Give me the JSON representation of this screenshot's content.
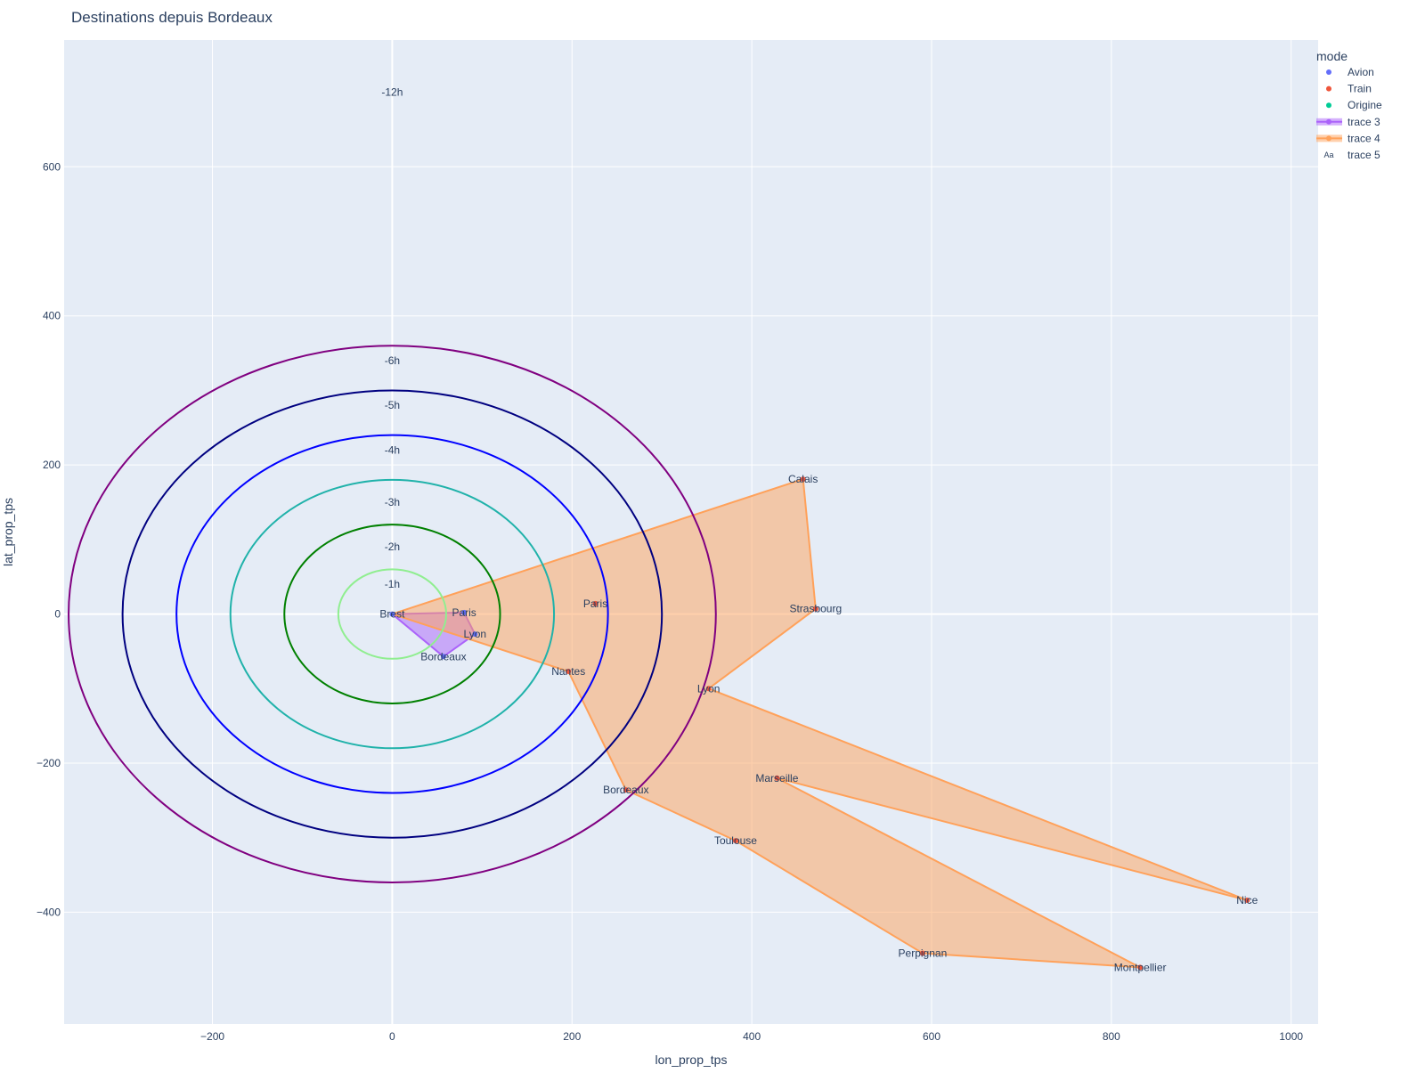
{
  "chart_data": {
    "type": "scatter",
    "title": "Destinations depuis Bordeaux",
    "xlabel": "lon_prop_tps",
    "ylabel": "lat_prop_tps",
    "xlim": [
      -365,
      1030
    ],
    "ylim": [
      -550,
      770
    ],
    "xticks": [
      -200,
      0,
      200,
      400,
      600,
      800,
      1000
    ],
    "yticks": [
      -400,
      -200,
      0,
      200,
      400,
      600
    ],
    "xtick_labels": [
      "−200",
      "0",
      "200",
      "400",
      "600",
      "800",
      "1000"
    ],
    "ytick_labels": [
      "−400",
      "−200",
      "0",
      "200",
      "400",
      "600"
    ],
    "grid": true,
    "legend_placement": "top-right",
    "colors": {
      "plot_bg": "#e5ecf6",
      "grid": "#ffffff",
      "text": "#2a3f5f",
      "avion": "#636efa",
      "train": "#ef553b",
      "origine": "#00cc96",
      "trace3": "#ab63fa",
      "trace4": "#ffa15a"
    },
    "legend": {
      "title": "mode",
      "entries": [
        {
          "name": "Avion",
          "kind": "marker",
          "color": "#636efa"
        },
        {
          "name": "Train",
          "kind": "marker",
          "color": "#ef553b"
        },
        {
          "name": "Origine",
          "kind": "marker",
          "color": "#00cc96"
        },
        {
          "name": "trace 3",
          "kind": "fill",
          "color": "#ab63fa"
        },
        {
          "name": "trace 4",
          "kind": "fill",
          "color": "#ffa15a"
        },
        {
          "name": "trace 5",
          "kind": "text",
          "color": "#2a3f5f"
        }
      ]
    },
    "rings": [
      {
        "label": "-1h",
        "radius": 60,
        "label_y": 40,
        "color": "#90ee90"
      },
      {
        "label": "-2h",
        "radius": 120,
        "label_y": 90,
        "color": "#008000"
      },
      {
        "label": "-3h",
        "radius": 180,
        "label_y": 150,
        "color": "#20b2aa"
      },
      {
        "label": "-4h",
        "radius": 240,
        "label_y": 220,
        "color": "#0000ff"
      },
      {
        "label": "-5h",
        "radius": 300,
        "label_y": 280,
        "color": "#000080"
      },
      {
        "label": "-6h",
        "radius": 360,
        "label_y": 340,
        "color": "#800080"
      }
    ],
    "extra_labels": [
      {
        "label": "-12h",
        "x": 0,
        "y": 700
      }
    ],
    "series": [
      {
        "name": "Avion",
        "color": "#636efa",
        "points": [
          {
            "city": "Brest",
            "x": 0,
            "y": 0
          },
          {
            "city": "Paris",
            "x": 80,
            "y": 2
          },
          {
            "city": "Lyon",
            "x": 92,
            "y": -27
          },
          {
            "city": "Bordeaux",
            "x": 57,
            "y": -57
          }
        ]
      },
      {
        "name": "Train",
        "color": "#ef553b",
        "points": [
          {
            "city": "Paris",
            "x": 226,
            "y": 14
          },
          {
            "city": "Calais",
            "x": 457,
            "y": 181
          },
          {
            "city": "Strasbourg",
            "x": 471,
            "y": 7
          },
          {
            "city": "Lyon",
            "x": 352,
            "y": -100
          },
          {
            "city": "Marseille",
            "x": 428,
            "y": -220
          },
          {
            "city": "Nice",
            "x": 951,
            "y": -384
          },
          {
            "city": "Montpellier",
            "x": 832,
            "y": -474
          },
          {
            "city": "Perpignan",
            "x": 590,
            "y": -455
          },
          {
            "city": "Toulouse",
            "x": 382,
            "y": -304
          },
          {
            "city": "Bordeaux",
            "x": 260,
            "y": -236
          },
          {
            "city": "Nantes",
            "x": 196,
            "y": -77
          }
        ]
      }
    ],
    "polygons": [
      {
        "name": "trace 3",
        "color": "#ab63fa",
        "points": [
          [
            0,
            0
          ],
          [
            80,
            2
          ],
          [
            92,
            -27
          ],
          [
            57,
            -57
          ],
          [
            0,
            0
          ]
        ]
      },
      {
        "name": "trace 4",
        "color": "#ffa15a",
        "points": [
          [
            0,
            0
          ],
          [
            457,
            181
          ],
          [
            471,
            7
          ],
          [
            352,
            -100
          ],
          [
            951,
            -384
          ],
          [
            428,
            -220
          ],
          [
            832,
            -474
          ],
          [
            590,
            -455
          ],
          [
            382,
            -304
          ],
          [
            260,
            -236
          ],
          [
            196,
            -77
          ],
          [
            0,
            0
          ]
        ]
      }
    ]
  }
}
